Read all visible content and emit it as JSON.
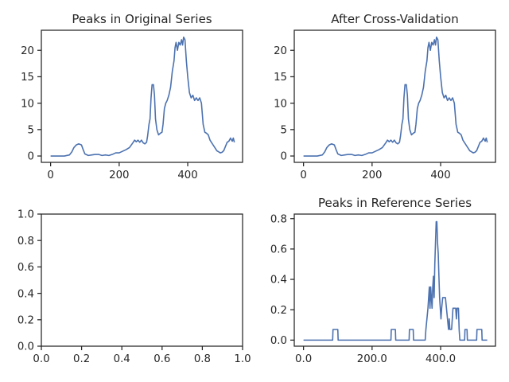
{
  "chart_data": [
    {
      "type": "line",
      "title": "Peaks in Original Series",
      "xlim": [
        -27,
        560
      ],
      "ylim": [
        -1.2,
        23.8
      ],
      "xticks": [
        0,
        200,
        400
      ],
      "yticks": [
        0,
        5,
        10,
        15,
        20
      ],
      "series": [
        {
          "color": "#4c72b0",
          "points": [
            [
              0,
              0
            ],
            [
              20,
              0
            ],
            [
              40,
              0
            ],
            [
              55,
              0.2
            ],
            [
              62,
              0.8
            ],
            [
              68,
              1.6
            ],
            [
              75,
              2.1
            ],
            [
              82,
              2.3
            ],
            [
              90,
              2.1
            ],
            [
              95,
              1.2
            ],
            [
              100,
              0.4
            ],
            [
              110,
              0.1
            ],
            [
              120,
              0.2
            ],
            [
              130,
              0.3
            ],
            [
              140,
              0.3
            ],
            [
              150,
              0.1
            ],
            [
              160,
              0.2
            ],
            [
              170,
              0.1
            ],
            [
              180,
              0.3
            ],
            [
              190,
              0.6
            ],
            [
              200,
              0.6
            ],
            [
              210,
              0.9
            ],
            [
              220,
              1.2
            ],
            [
              230,
              1.6
            ],
            [
              240,
              2.5
            ],
            [
              245,
              3.0
            ],
            [
              250,
              2.7
            ],
            [
              255,
              3.0
            ],
            [
              260,
              2.6
            ],
            [
              265,
              3.0
            ],
            [
              270,
              2.5
            ],
            [
              275,
              2.3
            ],
            [
              280,
              2.6
            ],
            [
              283,
              3.8
            ],
            [
              287,
              6.0
            ],
            [
              290,
              7.0
            ],
            [
              293,
              11.0
            ],
            [
              296,
              13.5
            ],
            [
              300,
              13.5
            ],
            [
              303,
              11.5
            ],
            [
              306,
              7.0
            ],
            [
              310,
              5.0
            ],
            [
              315,
              4.0
            ],
            [
              320,
              4.3
            ],
            [
              325,
              4.5
            ],
            [
              328,
              6.0
            ],
            [
              332,
              9.0
            ],
            [
              336,
              10.0
            ],
            [
              340,
              10.5
            ],
            [
              345,
              11.5
            ],
            [
              350,
              13.0
            ],
            [
              355,
              16.0
            ],
            [
              360,
              18.0
            ],
            [
              363,
              20.5
            ],
            [
              366,
              21.5
            ],
            [
              370,
              20.0
            ],
            [
              374,
              21.5
            ],
            [
              378,
              21.0
            ],
            [
              382,
              22.0
            ],
            [
              385,
              21.0
            ],
            [
              388,
              22.5
            ],
            [
              392,
              22.0
            ],
            [
              396,
              18.0
            ],
            [
              400,
              15.0
            ],
            [
              405,
              12.0
            ],
            [
              410,
              11.0
            ],
            [
              415,
              11.5
            ],
            [
              420,
              10.5
            ],
            [
              425,
              11.0
            ],
            [
              430,
              10.5
            ],
            [
              435,
              11.0
            ],
            [
              440,
              10.0
            ],
            [
              445,
              6.0
            ],
            [
              450,
              4.5
            ],
            [
              455,
              4.3
            ],
            [
              460,
              4.0
            ],
            [
              465,
              3.0
            ],
            [
              470,
              2.5
            ],
            [
              475,
              2.0
            ],
            [
              480,
              1.5
            ],
            [
              485,
              1.0
            ],
            [
              490,
              0.8
            ],
            [
              495,
              0.6
            ],
            [
              500,
              0.7
            ],
            [
              505,
              1.0
            ],
            [
              510,
              1.8
            ],
            [
              515,
              2.6
            ],
            [
              520,
              2.8
            ],
            [
              525,
              3.4
            ],
            [
              528,
              3.0
            ],
            [
              530,
              2.8
            ],
            [
              533,
              3.4
            ],
            [
              536,
              2.6
            ]
          ]
        }
      ]
    },
    {
      "type": "line",
      "title": "After Cross-Validation",
      "xlim": [
        -27,
        560
      ],
      "ylim": [
        -1.2,
        23.8
      ],
      "xticks": [
        0,
        200,
        400
      ],
      "yticks": [
        0,
        5,
        10,
        15,
        20
      ],
      "series": [
        {
          "color": "#4c72b0",
          "points": [
            [
              0,
              0
            ],
            [
              20,
              0
            ],
            [
              40,
              0
            ],
            [
              55,
              0.2
            ],
            [
              62,
              0.8
            ],
            [
              68,
              1.6
            ],
            [
              75,
              2.1
            ],
            [
              82,
              2.3
            ],
            [
              90,
              2.1
            ],
            [
              95,
              1.2
            ],
            [
              100,
              0.4
            ],
            [
              110,
              0.1
            ],
            [
              120,
              0.2
            ],
            [
              130,
              0.3
            ],
            [
              140,
              0.3
            ],
            [
              150,
              0.1
            ],
            [
              160,
              0.2
            ],
            [
              170,
              0.1
            ],
            [
              180,
              0.3
            ],
            [
              190,
              0.6
            ],
            [
              200,
              0.6
            ],
            [
              210,
              0.9
            ],
            [
              220,
              1.2
            ],
            [
              230,
              1.6
            ],
            [
              240,
              2.5
            ],
            [
              245,
              3.0
            ],
            [
              250,
              2.7
            ],
            [
              255,
              3.0
            ],
            [
              260,
              2.6
            ],
            [
              265,
              3.0
            ],
            [
              270,
              2.5
            ],
            [
              275,
              2.3
            ],
            [
              280,
              2.6
            ],
            [
              283,
              3.8
            ],
            [
              287,
              6.0
            ],
            [
              290,
              7.0
            ],
            [
              293,
              11.0
            ],
            [
              296,
              13.5
            ],
            [
              300,
              13.5
            ],
            [
              303,
              11.5
            ],
            [
              306,
              7.0
            ],
            [
              310,
              5.0
            ],
            [
              315,
              4.0
            ],
            [
              320,
              4.3
            ],
            [
              325,
              4.5
            ],
            [
              328,
              6.0
            ],
            [
              332,
              9.0
            ],
            [
              336,
              10.0
            ],
            [
              340,
              10.5
            ],
            [
              345,
              11.5
            ],
            [
              350,
              13.0
            ],
            [
              355,
              16.0
            ],
            [
              360,
              18.0
            ],
            [
              363,
              20.5
            ],
            [
              366,
              21.5
            ],
            [
              370,
              20.0
            ],
            [
              374,
              21.5
            ],
            [
              378,
              21.0
            ],
            [
              382,
              22.0
            ],
            [
              385,
              21.0
            ],
            [
              388,
              22.5
            ],
            [
              392,
              22.0
            ],
            [
              396,
              18.0
            ],
            [
              400,
              15.0
            ],
            [
              405,
              12.0
            ],
            [
              410,
              11.0
            ],
            [
              415,
              11.5
            ],
            [
              420,
              10.5
            ],
            [
              425,
              11.0
            ],
            [
              430,
              10.5
            ],
            [
              435,
              11.0
            ],
            [
              440,
              10.0
            ],
            [
              445,
              6.0
            ],
            [
              450,
              4.5
            ],
            [
              455,
              4.3
            ],
            [
              460,
              4.0
            ],
            [
              465,
              3.0
            ],
            [
              470,
              2.5
            ],
            [
              475,
              2.0
            ],
            [
              480,
              1.5
            ],
            [
              485,
              1.0
            ],
            [
              490,
              0.8
            ],
            [
              495,
              0.6
            ],
            [
              500,
              0.7
            ],
            [
              505,
              1.0
            ],
            [
              510,
              1.8
            ],
            [
              515,
              2.6
            ],
            [
              520,
              2.8
            ],
            [
              525,
              3.4
            ],
            [
              528,
              3.0
            ],
            [
              530,
              2.8
            ],
            [
              533,
              3.4
            ],
            [
              536,
              2.6
            ]
          ]
        }
      ]
    },
    {
      "type": "line",
      "title": "",
      "xlim": [
        0,
        1
      ],
      "ylim": [
        0,
        1
      ],
      "xticks": [
        0.0,
        0.2,
        0.4,
        0.6,
        0.8,
        1.0
      ],
      "yticks": [
        0.0,
        0.2,
        0.4,
        0.6,
        0.8,
        1.0
      ],
      "tick_format": "fixed1",
      "series": []
    },
    {
      "type": "line",
      "title": "Peaks in Reference Series",
      "xlim": [
        -27,
        560
      ],
      "ylim": [
        -0.04,
        0.83
      ],
      "xticks": [
        0,
        200,
        400
      ],
      "yticks": [
        0.0,
        0.2,
        0.4,
        0.6,
        0.8
      ],
      "tick_format": "fixed1",
      "series": [
        {
          "color": "#4c72b0",
          "points": [
            [
              0,
              0
            ],
            [
              85,
              0
            ],
            [
              86,
              0.07
            ],
            [
              100,
              0.07
            ],
            [
              101,
              0
            ],
            [
              255,
              0
            ],
            [
              256,
              0.07
            ],
            [
              268,
              0.07
            ],
            [
              269,
              0
            ],
            [
              308,
              0
            ],
            [
              309,
              0.07
            ],
            [
              320,
              0.07
            ],
            [
              321,
              0
            ],
            [
              355,
              0
            ],
            [
              357,
              0.07
            ],
            [
              360,
              0.14
            ],
            [
              363,
              0.21
            ],
            [
              365,
              0.28
            ],
            [
              367,
              0.35
            ],
            [
              369,
              0.21
            ],
            [
              371,
              0.35
            ],
            [
              373,
              0.28
            ],
            [
              375,
              0.21
            ],
            [
              377,
              0.35
            ],
            [
              379,
              0.42
            ],
            [
              381,
              0.28
            ],
            [
              383,
              0.5
            ],
            [
              385,
              0.64
            ],
            [
              387,
              0.78
            ],
            [
              389,
              0.78
            ],
            [
              391,
              0.64
            ],
            [
              393,
              0.57
            ],
            [
              395,
              0.42
            ],
            [
              397,
              0.28
            ],
            [
              399,
              0.21
            ],
            [
              401,
              0.14
            ],
            [
              403,
              0.21
            ],
            [
              406,
              0.28
            ],
            [
              414,
              0.28
            ],
            [
              417,
              0.21
            ],
            [
              420,
              0.14
            ],
            [
              423,
              0.07
            ],
            [
              425,
              0.14
            ],
            [
              427,
              0.07
            ],
            [
              432,
              0.07
            ],
            [
              434,
              0.14
            ],
            [
              436,
              0.21
            ],
            [
              444,
              0.21
            ],
            [
              446,
              0.14
            ],
            [
              448,
              0.21
            ],
            [
              452,
              0.21
            ],
            [
              454,
              0.07
            ],
            [
              456,
              0
            ],
            [
              470,
              0
            ],
            [
              471,
              0.07
            ],
            [
              477,
              0.07
            ],
            [
              478,
              0
            ],
            [
              505,
              0
            ],
            [
              506,
              0.07
            ],
            [
              520,
              0.07
            ],
            [
              521,
              0
            ],
            [
              536,
              0
            ]
          ]
        }
      ]
    }
  ]
}
